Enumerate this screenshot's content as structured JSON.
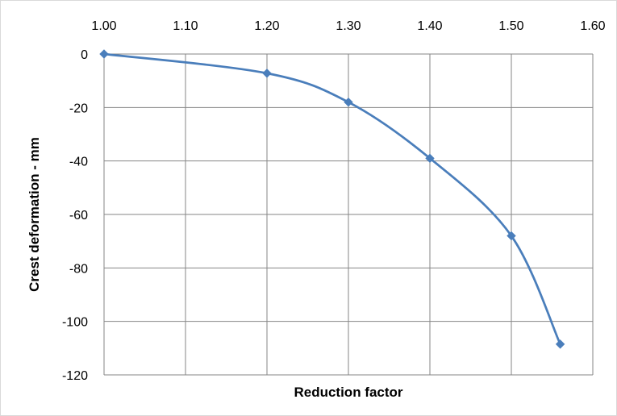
{
  "chart_data": {
    "type": "scatter",
    "title": "",
    "xlabel": "Reduction factor",
    "ylabel": "Crest deformation - mm",
    "xlim": [
      1.0,
      1.6
    ],
    "ylim": [
      -120,
      0
    ],
    "x_ticks": [
      "1.00",
      "1.10",
      "1.20",
      "1.30",
      "1.40",
      "1.50",
      "1.60"
    ],
    "y_ticks": [
      "0",
      "-20",
      "-40",
      "-60",
      "-80",
      "-100",
      "-120"
    ],
    "x_tick_values": [
      1.0,
      1.1,
      1.2,
      1.3,
      1.4,
      1.5,
      1.6
    ],
    "y_tick_values": [
      0,
      -20,
      -40,
      -60,
      -80,
      -100,
      -120
    ],
    "grid": true,
    "x_axis_position": "top",
    "line_style": "smooth",
    "marker": "diamond",
    "series": [
      {
        "color": "#4a7ebb",
        "x": [
          1.0,
          1.2,
          1.3,
          1.4,
          1.5,
          1.56
        ],
        "y": [
          0,
          -7.2,
          -18,
          -39,
          -68,
          -108.5
        ]
      }
    ]
  }
}
